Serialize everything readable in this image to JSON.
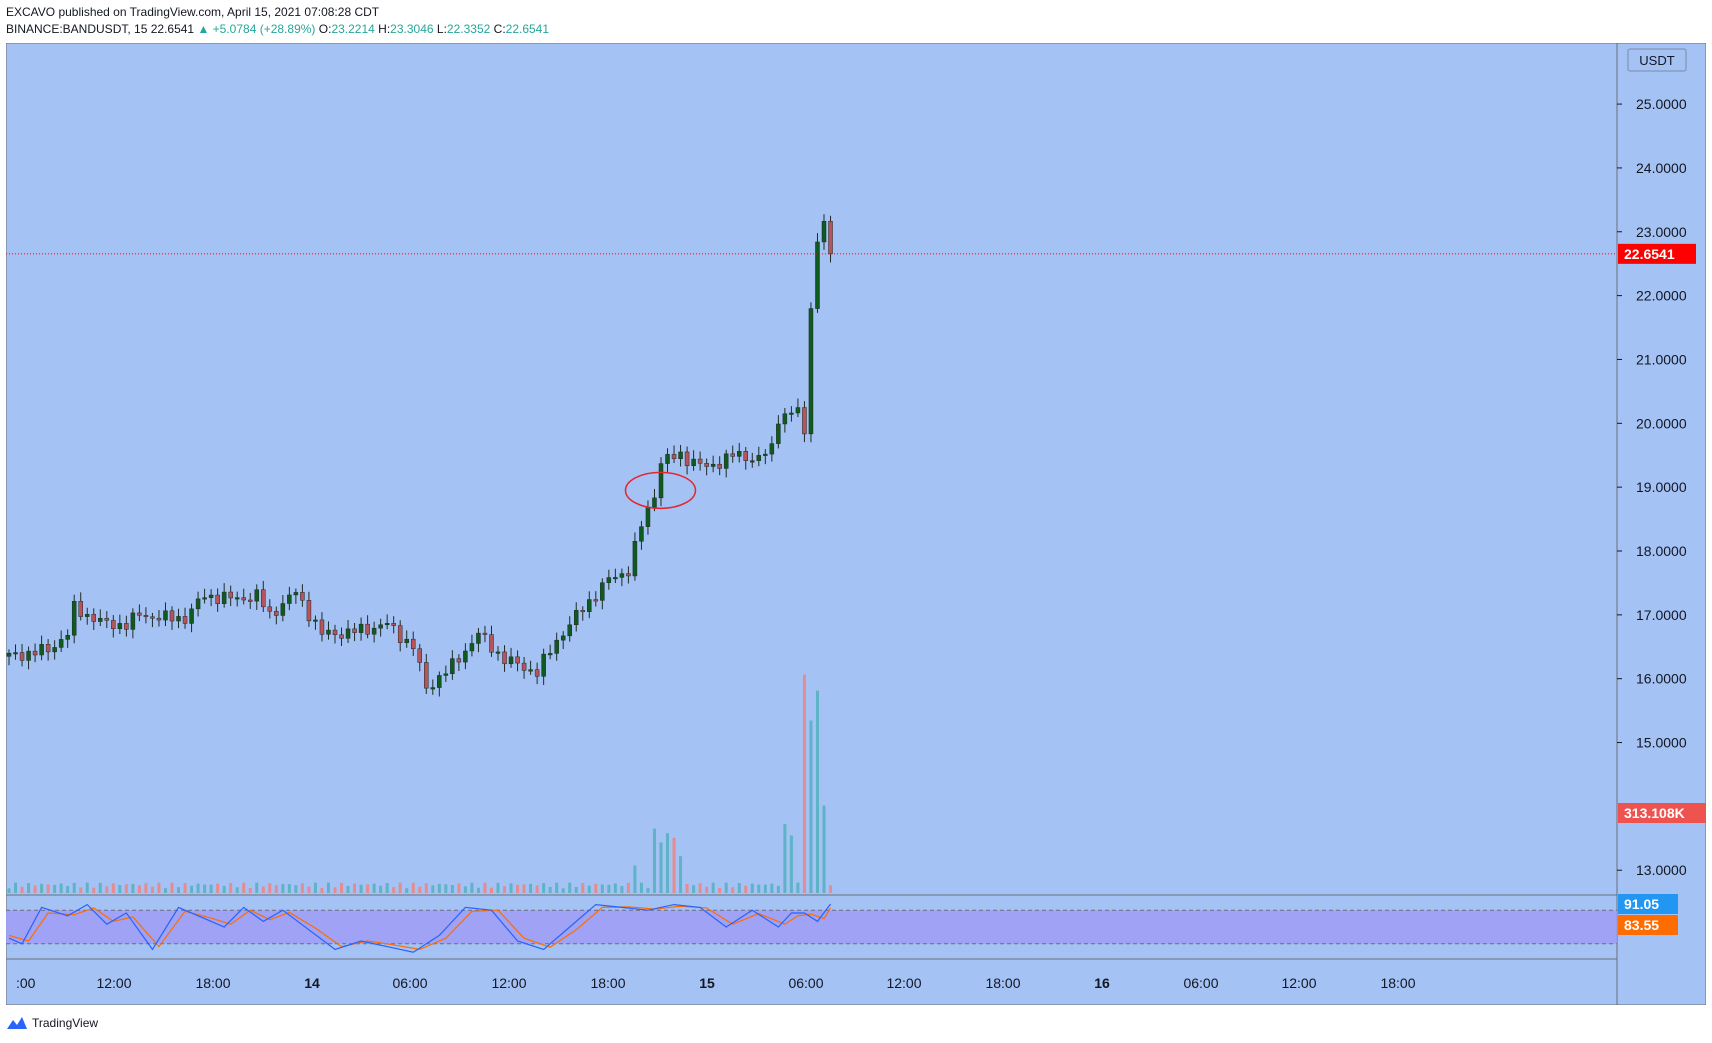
{
  "header": {
    "published_line": "EXCAVO published on TradingView.com, April 15, 2021 07:08:28 CDT",
    "symbol": "BINANCE:BANDUSDT, 15",
    "last": "22.6541",
    "change": "▲ +5.0784 (+28.89%)",
    "o_label": "O:",
    "o_value": "23.2214",
    "h_label": "H:",
    "h_value": "23.3046",
    "l_label": "L:",
    "l_value": "22.3352",
    "c_label": "C:",
    "c_value": "22.6541"
  },
  "footer": {
    "brand": "TradingView"
  },
  "colors": {
    "background": "#a4c2f4",
    "up": "#0f5a1e",
    "down": "#b7535b",
    "vol_up": "#5fb3c6",
    "vol_down": "#e58c90",
    "last_price": "#ff0000",
    "volume_badge": "#ef5350",
    "stoch_k": "#2962ff",
    "stoch_d": "#ff6d00",
    "stoch_band": "#9f9cf4"
  },
  "chart_data": {
    "type": "candlestick",
    "currency_label": "USDT",
    "y_ticks": [
      "25.0000",
      "24.0000",
      "23.0000",
      "22.0000",
      "21.0000",
      "20.0000",
      "19.0000",
      "18.0000",
      "17.0000",
      "16.0000",
      "15.0000",
      "13.0000"
    ],
    "ylim": [
      12.8,
      25.8
    ],
    "last_price_label": "22.6541",
    "last_price": 22.6541,
    "volume_label": "313.108K",
    "stoch_k_label": "91.05",
    "stoch_d_label": "83.55",
    "x_ticks": [
      ":00",
      "12:00",
      "18:00",
      "14",
      "06:00",
      "12:00",
      "18:00",
      "15",
      "06:00",
      "12:00",
      "18:00",
      "16",
      "06:00",
      "12:00",
      "18:00"
    ],
    "x_ticks_bold": [
      false,
      false,
      false,
      true,
      false,
      false,
      false,
      true,
      false,
      false,
      false,
      true,
      false,
      false,
      false
    ],
    "price_path": [
      [
        0,
        16.35
      ],
      [
        6,
        16.45
      ],
      [
        9,
        16.7
      ],
      [
        10,
        17.1
      ],
      [
        15,
        16.85
      ],
      [
        18,
        16.85
      ],
      [
        20,
        17.0
      ],
      [
        24,
        16.95
      ],
      [
        27,
        16.95
      ],
      [
        30,
        17.3
      ],
      [
        35,
        17.25
      ],
      [
        38,
        17.3
      ],
      [
        40,
        17.0
      ],
      [
        44,
        17.35
      ],
      [
        48,
        16.7
      ],
      [
        52,
        16.72
      ],
      [
        58,
        16.85
      ],
      [
        62,
        16.5
      ],
      [
        64,
        15.85
      ],
      [
        68,
        16.2
      ],
      [
        72,
        16.7
      ],
      [
        76,
        16.3
      ],
      [
        81,
        16.1
      ],
      [
        84,
        16.6
      ],
      [
        88,
        17.1
      ],
      [
        92,
        17.55
      ],
      [
        95,
        17.7
      ],
      [
        97,
        18.4
      ],
      [
        99,
        18.9
      ],
      [
        100,
        19.4
      ],
      [
        103,
        19.5
      ],
      [
        107,
        19.3
      ],
      [
        111,
        19.5
      ],
      [
        115,
        19.45
      ],
      [
        117,
        19.6
      ],
      [
        118,
        20.1
      ],
      [
        121,
        20.2
      ],
      [
        122,
        19.8
      ],
      [
        123,
        21.9
      ],
      [
        124,
        22.8
      ],
      [
        125,
        23.2
      ],
      [
        126,
        22.65
      ]
    ],
    "volume_bars": [
      {
        "index": 96,
        "height": 0.12
      },
      {
        "index": 99,
        "height": 0.28
      },
      {
        "index": 100,
        "height": 0.22
      },
      {
        "index": 101,
        "height": 0.26
      },
      {
        "index": 102,
        "height": 0.24
      },
      {
        "index": 103,
        "height": 0.16
      },
      {
        "index": 119,
        "height": 0.3
      },
      {
        "index": 120,
        "height": 0.25
      },
      {
        "index": 122,
        "height": 0.95
      },
      {
        "index": 123,
        "height": 0.75
      },
      {
        "index": 124,
        "height": 0.88
      },
      {
        "index": 125,
        "height": 0.38
      }
    ],
    "stoch_k_path": [
      [
        0,
        30
      ],
      [
        2,
        20
      ],
      [
        5,
        85
      ],
      [
        9,
        70
      ],
      [
        12,
        90
      ],
      [
        15,
        55
      ],
      [
        18,
        75
      ],
      [
        22,
        10
      ],
      [
        26,
        85
      ],
      [
        30,
        65
      ],
      [
        33,
        50
      ],
      [
        36,
        85
      ],
      [
        39,
        60
      ],
      [
        42,
        80
      ],
      [
        46,
        45
      ],
      [
        50,
        10
      ],
      [
        54,
        25
      ],
      [
        58,
        15
      ],
      [
        62,
        5
      ],
      [
        66,
        35
      ],
      [
        70,
        85
      ],
      [
        74,
        80
      ],
      [
        78,
        25
      ],
      [
        82,
        10
      ],
      [
        86,
        50
      ],
      [
        90,
        90
      ],
      [
        94,
        85
      ],
      [
        98,
        80
      ],
      [
        102,
        90
      ],
      [
        106,
        85
      ],
      [
        110,
        50
      ],
      [
        114,
        80
      ],
      [
        118,
        50
      ],
      [
        120,
        75
      ],
      [
        122,
        75
      ],
      [
        124,
        60
      ],
      [
        126,
        91
      ]
    ],
    "stoch_d_path": [
      [
        0,
        35
      ],
      [
        3,
        25
      ],
      [
        6,
        75
      ],
      [
        10,
        72
      ],
      [
        13,
        84
      ],
      [
        16,
        60
      ],
      [
        19,
        68
      ],
      [
        23,
        15
      ],
      [
        27,
        78
      ],
      [
        31,
        66
      ],
      [
        34,
        55
      ],
      [
        37,
        80
      ],
      [
        40,
        63
      ],
      [
        43,
        76
      ],
      [
        47,
        48
      ],
      [
        51,
        15
      ],
      [
        55,
        25
      ],
      [
        59,
        18
      ],
      [
        63,
        10
      ],
      [
        67,
        30
      ],
      [
        71,
        78
      ],
      [
        75,
        80
      ],
      [
        79,
        30
      ],
      [
        83,
        14
      ],
      [
        87,
        45
      ],
      [
        91,
        85
      ],
      [
        95,
        86
      ],
      [
        99,
        82
      ],
      [
        103,
        87
      ],
      [
        107,
        84
      ],
      [
        111,
        55
      ],
      [
        115,
        74
      ],
      [
        119,
        55
      ],
      [
        121,
        70
      ],
      [
        123,
        73
      ],
      [
        125,
        65
      ],
      [
        126,
        84
      ]
    ],
    "annotation": {
      "type": "ellipse",
      "at_index": 99,
      "at_price": 18.95
    }
  }
}
